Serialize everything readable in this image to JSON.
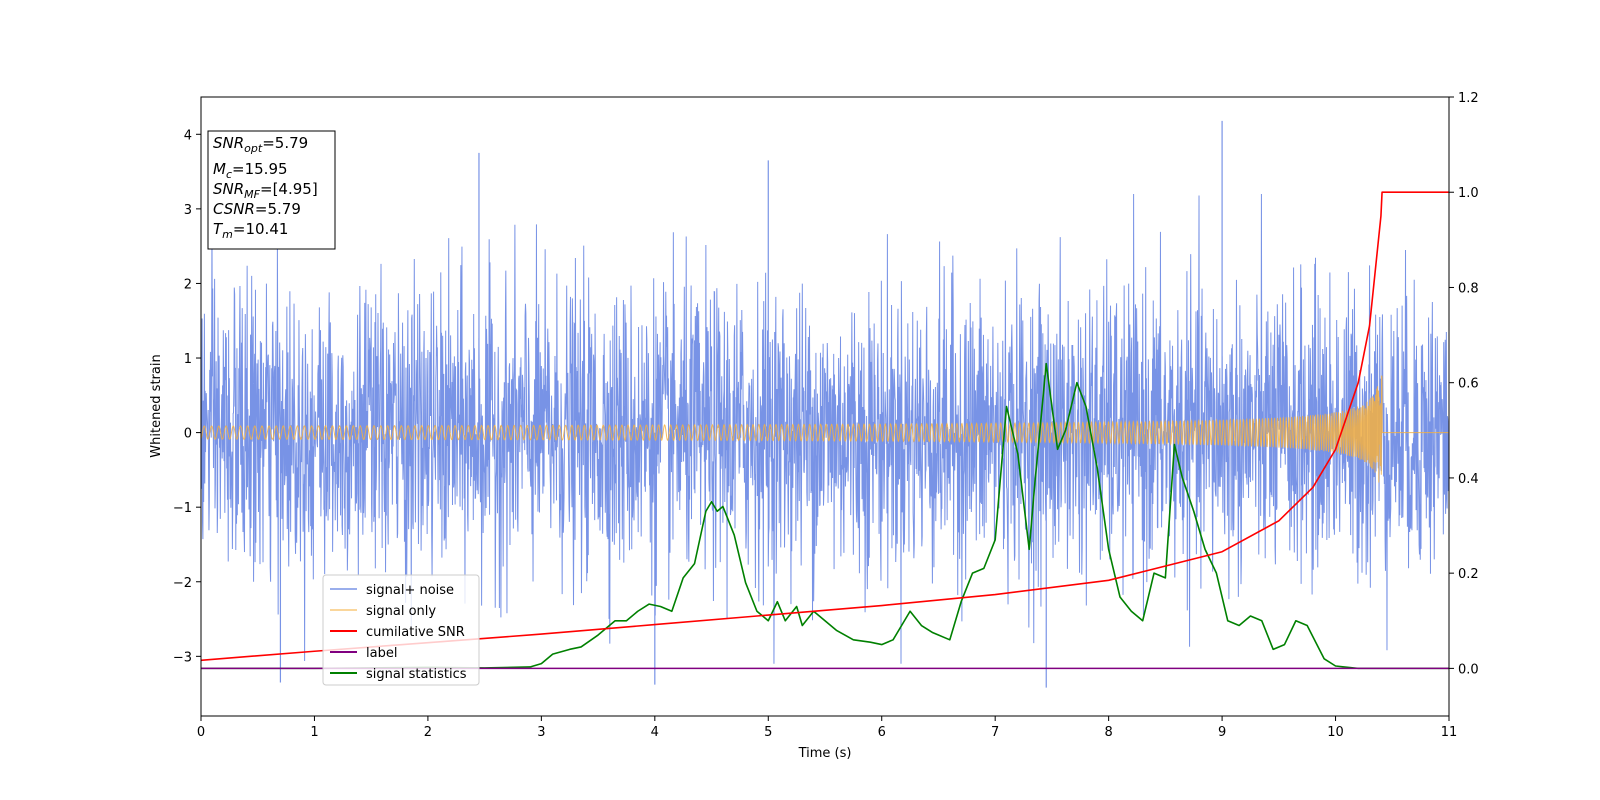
{
  "chart_data": {
    "type": "line",
    "xlabel": "Time (s)",
    "ylabel": "Whitened strain",
    "xlim": [
      0,
      11
    ],
    "ylim": [
      -3.8,
      4.5
    ],
    "y2lim": [
      -0.1,
      1.2
    ],
    "xticks": [
      "0",
      "1",
      "2",
      "3",
      "4",
      "5",
      "6",
      "7",
      "8",
      "9",
      "10",
      "11"
    ],
    "yticks": [
      "−3",
      "−2",
      "−1",
      "0",
      "1",
      "2",
      "3",
      "4"
    ],
    "y2ticks": [
      "0.0",
      "0.2",
      "0.4",
      "0.6",
      "0.8",
      "1.0",
      "1.2"
    ],
    "legend_position": "lower-left",
    "annotation": {
      "lines": [
        {
          "var": "SNR",
          "sub": "opt",
          "value": "=5.79"
        },
        {
          "var": "M",
          "sub": "c",
          "value": "=15.95"
        },
        {
          "var": "SNR",
          "sub": "MF",
          "value": "=[4.95]"
        },
        {
          "var": "CSNR",
          "sub": "",
          "value": "=5.79"
        },
        {
          "var": "T",
          "sub": "m",
          "value": "=10.41"
        }
      ]
    },
    "series": [
      {
        "name": "signal+ noise",
        "color": "#7893e6",
        "axis": "left",
        "style": "noise band",
        "envelope_typical": [
          -2.0,
          2.4
        ],
        "extremes": [
          [
            0.7,
            -3.35
          ],
          [
            2.45,
            3.75
          ],
          [
            4.0,
            -3.38
          ],
          [
            5.0,
            3.65
          ],
          [
            7.45,
            -3.42
          ],
          [
            9.0,
            4.18
          ]
        ]
      },
      {
        "name": "signal only",
        "color": "#f5b041",
        "axis": "left",
        "style": "chirp",
        "merger_time": 10.41,
        "peak_amplitude": 1.0
      },
      {
        "name": "cumilative SNR",
        "color": "#ff0000",
        "axis": "right",
        "x": [
          0,
          1,
          2,
          3,
          4,
          5,
          6,
          7,
          8,
          9,
          9.5,
          9.8,
          10.0,
          10.2,
          10.3,
          10.4,
          10.41,
          11
        ],
        "y": [
          0.017,
          0.036,
          0.054,
          0.072,
          0.092,
          0.112,
          0.132,
          0.155,
          0.185,
          0.245,
          0.31,
          0.38,
          0.46,
          0.6,
          0.72,
          0.95,
          1.0,
          1.0
        ]
      },
      {
        "name": "label",
        "color": "#800080",
        "axis": "right",
        "x": [
          0,
          11
        ],
        "y": [
          0,
          0
        ]
      },
      {
        "name": "signal statistics",
        "color": "#008000",
        "axis": "right",
        "x": [
          0,
          1,
          2,
          2.5,
          2.9,
          3.0,
          3.1,
          3.25,
          3.35,
          3.5,
          3.65,
          3.75,
          3.85,
          3.95,
          4.05,
          4.15,
          4.25,
          4.35,
          4.45,
          4.5,
          4.55,
          4.6,
          4.7,
          4.8,
          4.9,
          5.0,
          5.08,
          5.15,
          5.25,
          5.3,
          5.4,
          5.5,
          5.6,
          5.75,
          5.9,
          6.0,
          6.1,
          6.2,
          6.25,
          6.35,
          6.45,
          6.5,
          6.6,
          6.7,
          6.8,
          6.9,
          7.0,
          7.1,
          7.2,
          7.3,
          7.35,
          7.45,
          7.55,
          7.62,
          7.72,
          7.8,
          7.9,
          8.0,
          8.1,
          8.2,
          8.3,
          8.4,
          8.5,
          8.58,
          8.65,
          8.75,
          8.85,
          8.95,
          9.05,
          9.15,
          9.25,
          9.35,
          9.45,
          9.55,
          9.65,
          9.75,
          9.9,
          10.0,
          10.2,
          10.5,
          11
        ],
        "y": [
          0.0,
          0.0,
          0.002,
          0.001,
          0.003,
          0.01,
          0.03,
          0.04,
          0.045,
          0.07,
          0.1,
          0.1,
          0.12,
          0.135,
          0.13,
          0.12,
          0.19,
          0.22,
          0.33,
          0.35,
          0.33,
          0.34,
          0.28,
          0.18,
          0.12,
          0.1,
          0.14,
          0.1,
          0.13,
          0.09,
          0.12,
          0.1,
          0.08,
          0.06,
          0.055,
          0.05,
          0.06,
          0.1,
          0.12,
          0.09,
          0.075,
          0.07,
          0.06,
          0.14,
          0.2,
          0.21,
          0.27,
          0.55,
          0.45,
          0.25,
          0.39,
          0.64,
          0.46,
          0.5,
          0.6,
          0.55,
          0.42,
          0.25,
          0.15,
          0.12,
          0.1,
          0.2,
          0.19,
          0.47,
          0.4,
          0.33,
          0.25,
          0.2,
          0.1,
          0.09,
          0.11,
          0.1,
          0.04,
          0.05,
          0.1,
          0.09,
          0.02,
          0.005,
          0.0,
          0.0,
          0.0
        ]
      }
    ]
  }
}
